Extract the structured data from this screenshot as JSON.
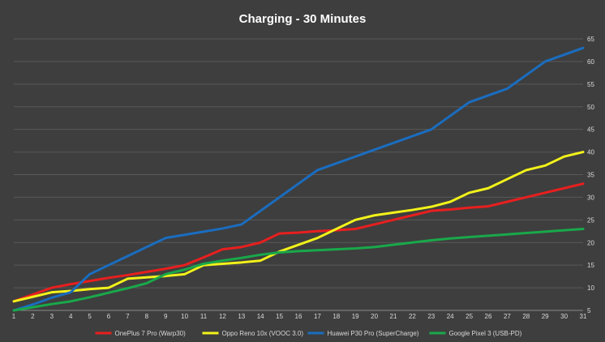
{
  "chart_data": {
    "type": "line",
    "title": "Charging - 30 Minutes",
    "xlabel": "",
    "ylabel": "",
    "x": [
      1,
      2,
      3,
      4,
      5,
      6,
      7,
      8,
      9,
      10,
      11,
      12,
      13,
      14,
      15,
      16,
      17,
      18,
      19,
      20,
      21,
      22,
      23,
      24,
      25,
      26,
      27,
      28,
      29,
      30,
      31
    ],
    "ylim": [
      5,
      65
    ],
    "yticks": [
      5,
      10,
      15,
      20,
      25,
      30,
      35,
      40,
      45,
      50,
      55,
      60,
      65
    ],
    "y_axis_side": "right",
    "grid": true,
    "legend_position": "bottom",
    "background": "#3e3e3e",
    "gridline_color": "#595959",
    "series": [
      {
        "name": "OnePlus 7 Pro (Warp30)",
        "color": "#e81f1f",
        "values": [
          7,
          8.5,
          10,
          10.8,
          11.5,
          12.2,
          12.8,
          13.5,
          14.2,
          15,
          16.7,
          18.5,
          19,
          20,
          22,
          22.2,
          22.5,
          22.7,
          23,
          24,
          25,
          26,
          27,
          27.3,
          27.7,
          28,
          29,
          30,
          31,
          32,
          33
        ]
      },
      {
        "name": "Oppo Reno 10x (VOOC 3.0)",
        "color": "#f2f21a",
        "values": [
          7,
          8,
          9,
          9.3,
          9.7,
          10,
          12,
          12.3,
          12.6,
          13,
          15,
          15.3,
          15.6,
          16,
          18,
          19.5,
          21,
          23,
          25,
          26,
          26.6,
          27.2,
          27.9,
          29,
          31,
          32,
          34,
          36,
          37,
          39,
          40
        ]
      },
      {
        "name": "Huawei P30 Pro (SuperCharge)",
        "color": "#1a6dbf",
        "values": [
          5,
          6.3,
          7.8,
          9,
          13,
          15,
          17,
          19,
          21,
          21.7,
          22.4,
          23.1,
          24,
          27,
          30,
          33,
          36,
          37.5,
          39,
          40.5,
          42,
          43.5,
          45,
          48,
          51,
          52.5,
          54,
          57,
          60,
          61.5,
          63
        ]
      },
      {
        "name": "Google Pixel 3 (USB-PD)",
        "color": "#19a84a",
        "values": [
          5,
          5.7,
          6.4,
          7,
          7.9,
          8.9,
          9.9,
          11,
          13,
          14,
          15.3,
          16,
          16.6,
          17.3,
          17.8,
          18.1,
          18.3,
          18.5,
          18.7,
          19,
          19.5,
          20,
          20.5,
          20.9,
          21.2,
          21.5,
          21.8,
          22.1,
          22.4,
          22.7,
          23
        ]
      }
    ]
  }
}
